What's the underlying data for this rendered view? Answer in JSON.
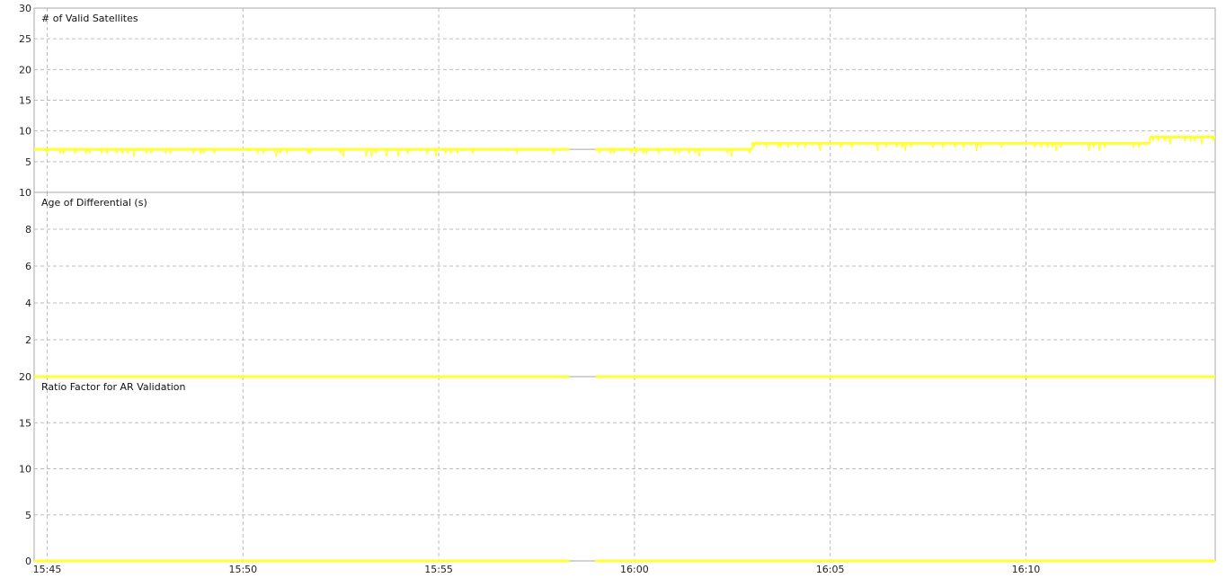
{
  "colors": {
    "series": "#ffff33",
    "gap_line": "#a6a6a6",
    "grid": "#bdbdbd",
    "frame": "#aaaaaa",
    "divider": "#999999"
  },
  "chart_data": [
    {
      "type": "line",
      "title": "# of Valid Satellites",
      "ylim": [
        0,
        30
      ],
      "yticks": [
        "30",
        "25",
        "20",
        "15",
        "10",
        "5"
      ],
      "xticks": [
        "15:45",
        "15:50",
        "15:55",
        "16:00",
        "16:05",
        "16:10"
      ],
      "grid": true,
      "series": [
        {
          "values_summary": "mostly 7 with frequent brief dips to 5-6 from 15:45 to 15:58; data gap until 15:59; 7 until 16:03; 8 from 16:03 to 16:13; 9 near the end",
          "segments": [
            {
              "x": [
                "15:44:40",
                "15:58:20"
              ],
              "y": [
                7,
                7
              ]
            },
            {
              "x": [
                "15:59:00",
                "16:03:00"
              ],
              "y": [
                7,
                7
              ]
            },
            {
              "x": [
                "16:03:00",
                "16:13:10"
              ],
              "y": [
                8,
                8
              ]
            },
            {
              "x": [
                "16:13:10",
                "16:14:50"
              ],
              "y": [
                9,
                9
              ]
            }
          ]
        }
      ]
    },
    {
      "type": "line",
      "title": "Age of Differential (s)",
      "ylim": [
        0,
        10
      ],
      "yticks": [
        "10",
        "8",
        "6",
        "4",
        "2"
      ],
      "xticks": [
        "15:45",
        "15:50",
        "15:55",
        "16:00",
        "16:05",
        "16:10"
      ],
      "grid": true,
      "series": [
        {
          "values_summary": "constant 0 with a gap between about 15:58:20 and 15:59:00",
          "segments": [
            {
              "x": [
                "15:44:40",
                "15:58:20"
              ],
              "y": [
                0,
                0
              ]
            },
            {
              "x": [
                "15:59:00",
                "16:14:50"
              ],
              "y": [
                0,
                0
              ]
            }
          ]
        }
      ]
    },
    {
      "type": "line",
      "title": "Ratio Factor for AR Validation",
      "ylim": [
        0,
        20
      ],
      "yticks": [
        "20",
        "15",
        "10",
        "5",
        "0"
      ],
      "xticks": [
        "15:45",
        "15:50",
        "15:55",
        "16:00",
        "16:05",
        "16:10"
      ],
      "grid": true,
      "series": [
        {
          "values_summary": "constant 0 with a gap between about 15:58:20 and 15:59:00",
          "segments": [
            {
              "x": [
                "15:44:40",
                "15:58:20"
              ],
              "y": [
                0,
                0
              ]
            },
            {
              "x": [
                "15:59:00",
                "16:14:50"
              ],
              "y": [
                0,
                0
              ]
            }
          ]
        }
      ]
    }
  ]
}
